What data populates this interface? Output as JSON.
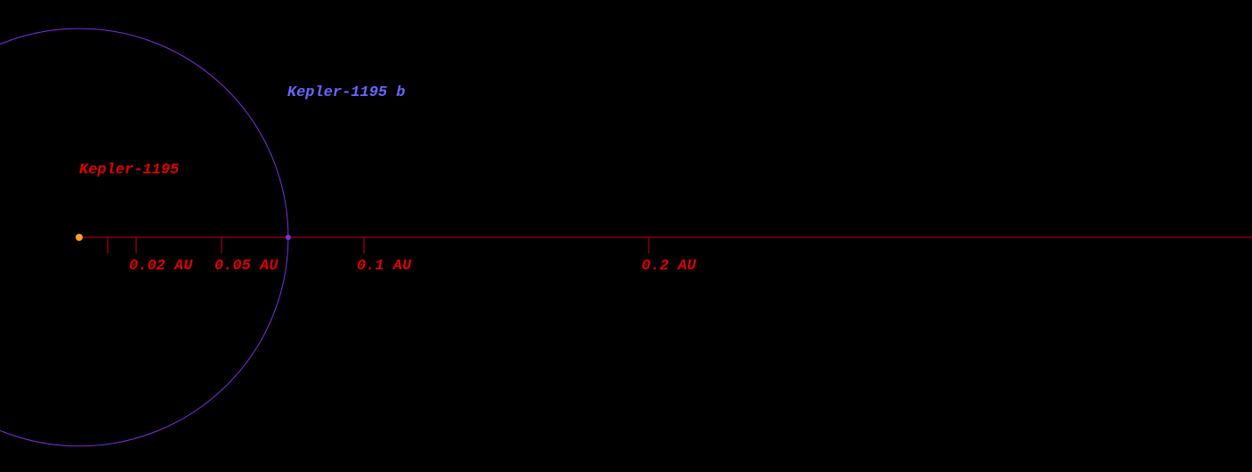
{
  "star": {
    "label": "Kepler-1195"
  },
  "planets": [
    {
      "label": "Kepler-1195 b",
      "orbit_au": 0.0734,
      "color": "#7b2fe0"
    }
  ],
  "scale": {
    "ticks": [
      {
        "value": 0.01
      },
      {
        "value": 0.02,
        "label": "0.02 AU"
      },
      {
        "value": 0.05,
        "label": "0.05 AU"
      },
      {
        "value": 0.1,
        "label": "0.1 AU"
      },
      {
        "value": 0.2,
        "label": "0.2 AU"
      }
    ]
  }
}
